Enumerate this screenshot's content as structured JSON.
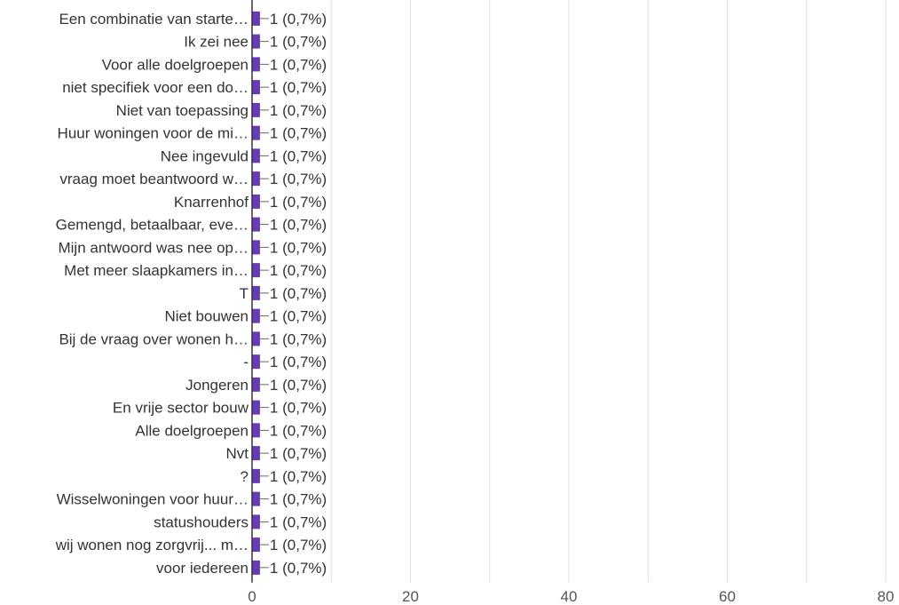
{
  "chart_data": {
    "type": "bar",
    "orientation": "horizontal",
    "categories": [
      "Een combinatie van starte…",
      "Ik zei nee",
      "Voor alle doelgroepen",
      "niet specifiek voor een do…",
      "Niet van toepassing",
      "Huur woningen voor de mi…",
      "Nee ingevuld",
      "vraag moet beantwoord w…",
      "Knarrenhof",
      "Gemengd, betaalbaar, eve…",
      "Mijn antwoord was nee op…",
      "Met meer slaapkamers in…",
      "T",
      "Niet bouwen",
      "Bij de vraag over wonen h…",
      "-",
      "Jongeren",
      "En vrije sector bouw",
      "Alle doelgroepen",
      "Nvt",
      "?",
      "Wisselwoningen voor huur…",
      "statushouders",
      "wij wonen nog zorgvrij... m…",
      "voor iedereen"
    ],
    "values": [
      1,
      1,
      1,
      1,
      1,
      1,
      1,
      1,
      1,
      1,
      1,
      1,
      1,
      1,
      1,
      1,
      1,
      1,
      1,
      1,
      1,
      1,
      1,
      1,
      1
    ],
    "data_labels": [
      "1 (0,7%)",
      "1 (0,7%)",
      "1 (0,7%)",
      "1 (0,7%)",
      "1 (0,7%)",
      "1 (0,7%)",
      "1 (0,7%)",
      "1 (0,7%)",
      "1 (0,7%)",
      "1 (0,7%)",
      "1 (0,7%)",
      "1 (0,7%)",
      "1 (0,7%)",
      "1 (0,7%)",
      "1 (0,7%)",
      "1 (0,7%)",
      "1 (0,7%)",
      "1 (0,7%)",
      "1 (0,7%)",
      "1 (0,7%)",
      "1 (0,7%)",
      "1 (0,7%)",
      "1 (0,7%)",
      "1 (0,7%)",
      "1 (0,7%)"
    ],
    "xlim": [
      0,
      80
    ],
    "xticks": [
      0,
      20,
      40,
      60,
      80
    ],
    "grid": true,
    "colors": {
      "bar": "#673ab7",
      "grid": "#e0e0e0",
      "axis": "#333333",
      "text": "#333333",
      "tick_text": "#555555",
      "connector": "#666666"
    }
  }
}
